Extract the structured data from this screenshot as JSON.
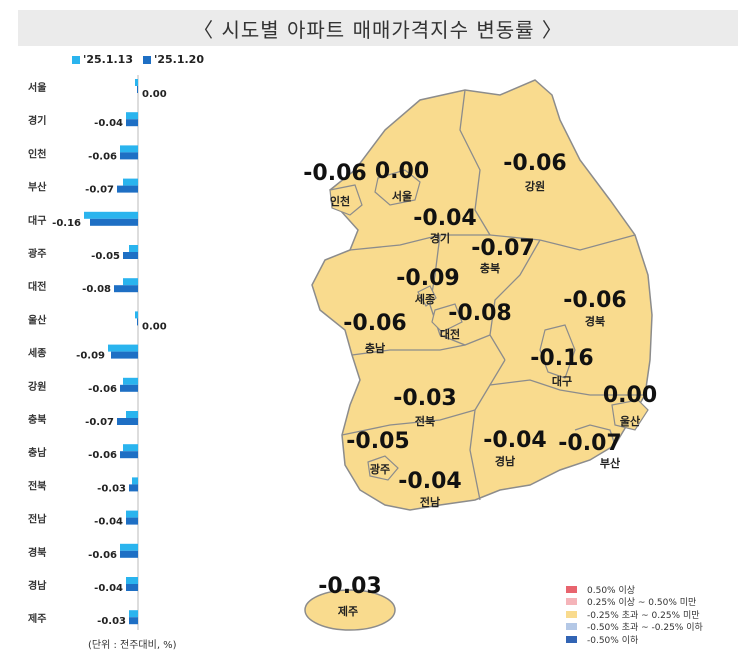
{
  "title": "〈 시도별 아파트 매매가격지수 변동률 〉",
  "legend": {
    "series1": "'25.1.13",
    "series2": "'25.1.20",
    "color1": "#2ab4ee",
    "color2": "#1e6fc4"
  },
  "unit_note": "(단위 : 전주대비, %)",
  "chart_data": {
    "type": "bar",
    "orientation": "horizontal",
    "categories": [
      "서울",
      "경기",
      "인천",
      "부산",
      "대구",
      "광주",
      "대전",
      "울산",
      "세종",
      "강원",
      "충북",
      "충남",
      "전북",
      "전남",
      "경북",
      "경남",
      "제주"
    ],
    "series": [
      {
        "name": "'25.1.13",
        "values": [
          -0.01,
          -0.04,
          -0.06,
          -0.05,
          -0.18,
          -0.03,
          -0.05,
          -0.01,
          -0.1,
          -0.05,
          -0.04,
          -0.05,
          -0.02,
          -0.04,
          -0.06,
          -0.04,
          -0.03
        ]
      },
      {
        "name": "'25.1.20",
        "values": [
          0.0,
          -0.04,
          -0.06,
          -0.07,
          -0.16,
          -0.05,
          -0.08,
          0.0,
          -0.09,
          -0.06,
          -0.07,
          -0.06,
          -0.03,
          -0.04,
          -0.06,
          -0.04,
          -0.03
        ]
      }
    ],
    "data_labels": [
      "0.00",
      "-0.04",
      "-0.06",
      "-0.07",
      "-0.16",
      "-0.05",
      "-0.08",
      "0.00",
      "-0.09",
      "-0.06",
      "-0.07",
      "-0.06",
      "-0.03",
      "-0.04",
      "-0.06",
      "-0.04",
      "-0.03"
    ]
  },
  "map": {
    "regions": [
      {
        "name": "인천",
        "value": "-0.06"
      },
      {
        "name": "서울",
        "value": "0.00"
      },
      {
        "name": "강원",
        "value": "-0.06"
      },
      {
        "name": "경기",
        "value": "-0.04"
      },
      {
        "name": "충북",
        "value": "-0.07"
      },
      {
        "name": "세종",
        "value": "-0.09"
      },
      {
        "name": "대전",
        "value": "-0.08"
      },
      {
        "name": "충남",
        "value": "-0.06"
      },
      {
        "name": "경북",
        "value": "-0.06"
      },
      {
        "name": "대구",
        "value": "-0.16"
      },
      {
        "name": "울산",
        "value": "0.00"
      },
      {
        "name": "전북",
        "value": "-0.03"
      },
      {
        "name": "광주",
        "value": "-0.05"
      },
      {
        "name": "경남",
        "value": "-0.04"
      },
      {
        "name": "부산",
        "value": "-0.07"
      },
      {
        "name": "전남",
        "value": "-0.04"
      },
      {
        "name": "제주",
        "value": "-0.03"
      }
    ],
    "fill_color": "#f9db8e",
    "border_color": "#8c8c8c"
  },
  "map_legend": [
    {
      "label": "0.50% 이상",
      "color": "#e8646e"
    },
    {
      "label": "0.25% 이상 ~ 0.50% 미만",
      "color": "#f5b4b9"
    },
    {
      "label": "-0.25% 초과 ~ 0.25% 미만",
      "color": "#f9db8e"
    },
    {
      "label": "-0.50% 초과 ~ -0.25% 이하",
      "color": "#b4c8e6"
    },
    {
      "label": "-0.50% 이하",
      "color": "#3264b4"
    }
  ]
}
